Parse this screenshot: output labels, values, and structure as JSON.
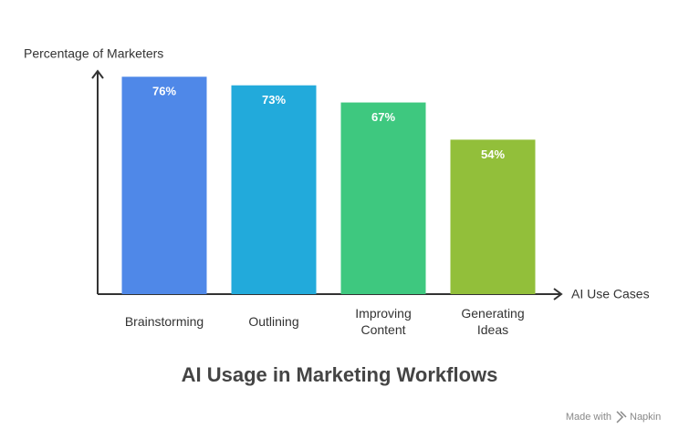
{
  "chart_data": {
    "type": "bar",
    "title": "AI Usage in Marketing Workflows",
    "y_label": "Percentage of Marketers",
    "x_label": "AI Use Cases",
    "categories": [
      "Brainstorming",
      "Outlining",
      "Improving Content",
      "Generating Ideas"
    ],
    "values": [
      76,
      73,
      67,
      54
    ],
    "value_labels": [
      "76%",
      "73%",
      "67%",
      "54%"
    ],
    "colors": [
      "#4f88e8",
      "#22aadb",
      "#3ec87f",
      "#92bf3a"
    ],
    "ylim": [
      0,
      78
    ]
  },
  "footer": {
    "prefix": "Made with",
    "brand": "Napkin"
  }
}
